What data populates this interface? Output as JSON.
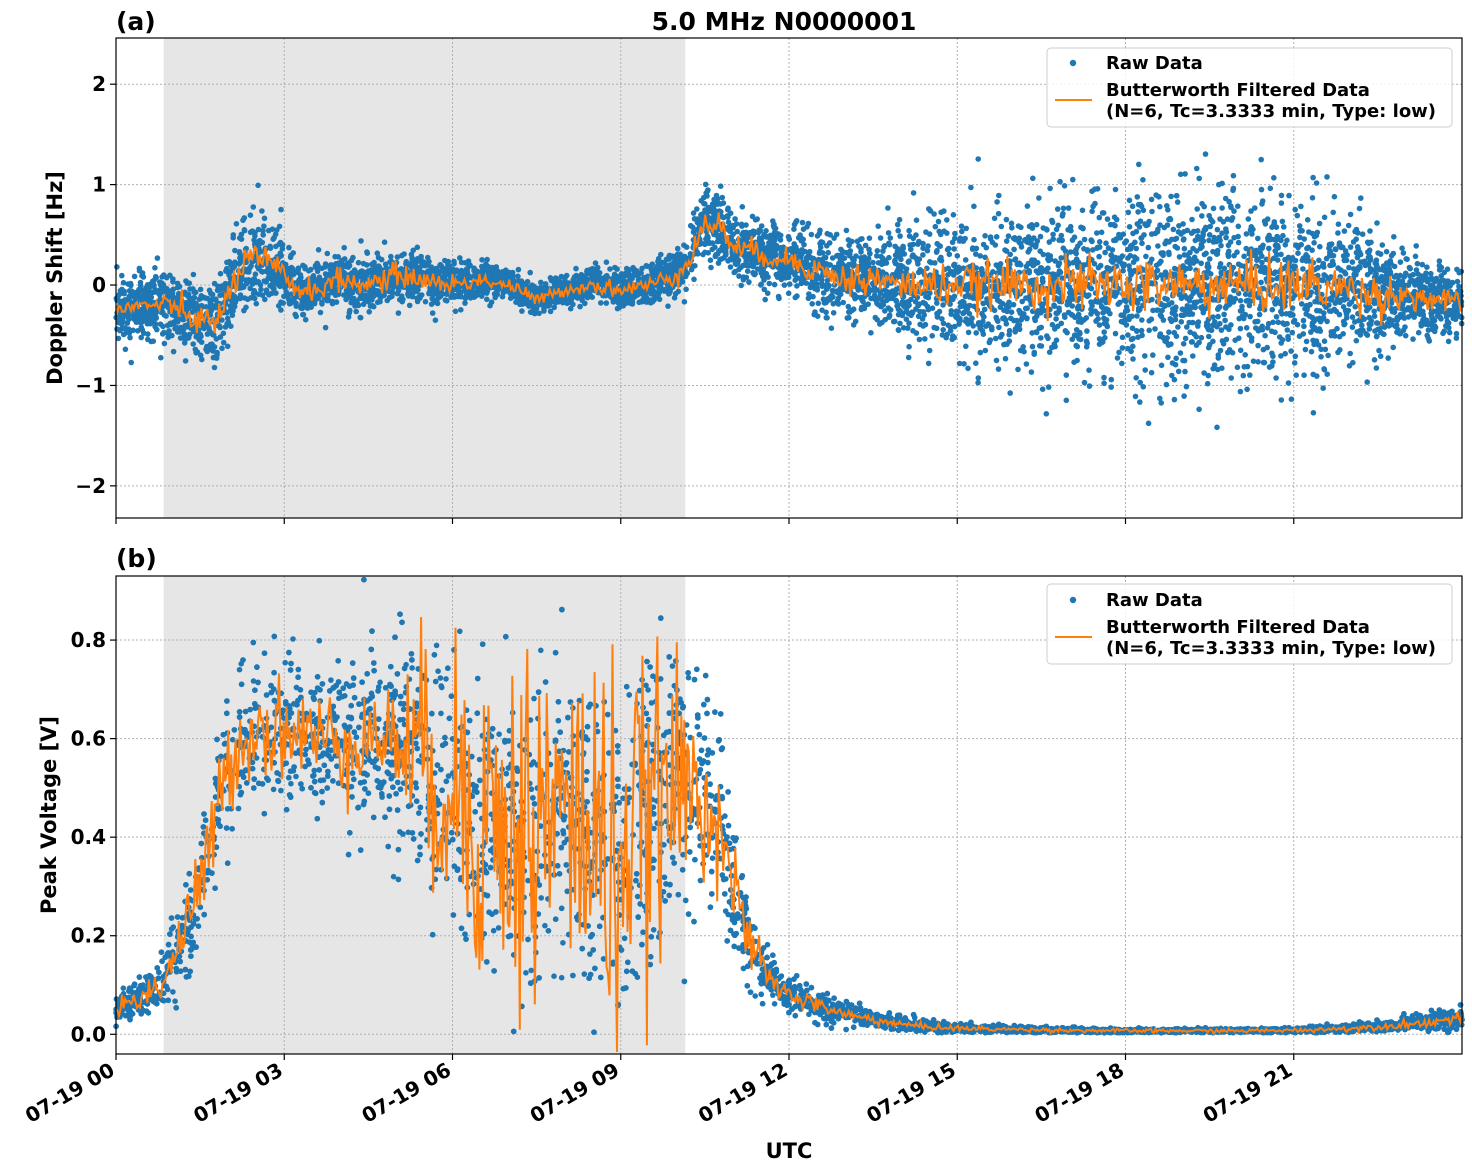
{
  "figure": {
    "title": "5.0 MHz N0000001",
    "xlabel": "UTC",
    "x_tick_labels": [
      "07-19 00",
      "07-19 03",
      "07-19 06",
      "07-19 09",
      "07-19 12",
      "07-19 15",
      "07-19 18",
      "07-19 21"
    ],
    "colors": {
      "raw": "#1f77b4",
      "filtered": "#ff7f0e",
      "shade": "#e6e6e6",
      "grid": "#b0b0b0"
    }
  },
  "legend": {
    "raw_label": "Raw Data",
    "filtered_label_line1": "Butterworth Filtered Data",
    "filtered_label_line2": "(N=6, Tc=3.3333 min, Type: low)",
    "placement": "top-right"
  },
  "chart_data": [
    {
      "type": "scatter",
      "panel_label": "(a)",
      "ylabel": "Doppler Shift [Hz]",
      "xlim_hours": [
        0,
        24
      ],
      "ylim": [
        -2.32,
        2.46
      ],
      "y_ticks": [
        2,
        1,
        0,
        -1,
        -2
      ],
      "y_tick_labels": [
        "2",
        "1",
        "0",
        "−1",
        "−2"
      ],
      "grid": true,
      "shaded_region_hours": [
        0.85,
        10.15
      ],
      "series": [
        {
          "name": "Raw Data",
          "style": "points",
          "x_hours": [
            0,
            0.5,
            1,
            1.25,
            1.5,
            1.75,
            2,
            2.25,
            2.5,
            2.75,
            3,
            3.25,
            3.5,
            4,
            4.5,
            5,
            5.5,
            6,
            6.5,
            7,
            7.5,
            8,
            8.5,
            9,
            9.5,
            10,
            10.25,
            10.5,
            10.75,
            11,
            11.5,
            12,
            12.5,
            13,
            13.5,
            14,
            14.5,
            15,
            15.5,
            16,
            16.5,
            17,
            17.5,
            18,
            18.5,
            19,
            19.5,
            20,
            20.5,
            21,
            21.5,
            22,
            22.5,
            23,
            23.5,
            24
          ],
          "center": [
            -0.25,
            -0.2,
            -0.2,
            -0.3,
            -0.35,
            -0.4,
            -0.1,
            0.2,
            0.25,
            0.2,
            0.1,
            -0.05,
            -0.05,
            0.05,
            0.0,
            0.1,
            0.05,
            0.0,
            0.05,
            0.0,
            -0.15,
            -0.05,
            0.0,
            -0.05,
            0.0,
            0.1,
            0.3,
            0.6,
            0.6,
            0.4,
            0.3,
            0.25,
            0.15,
            0.05,
            0.05,
            0.0,
            0.0,
            0.0,
            0.0,
            0.0,
            0.0,
            0.0,
            0.0,
            0.0,
            0.0,
            0.0,
            0.0,
            0.0,
            0.0,
            0.0,
            0.0,
            -0.05,
            -0.1,
            -0.1,
            -0.15,
            -0.2
          ],
          "spread": [
            0.35,
            0.35,
            0.35,
            0.4,
            0.45,
            0.5,
            0.45,
            0.5,
            0.55,
            0.5,
            0.4,
            0.3,
            0.3,
            0.3,
            0.3,
            0.3,
            0.25,
            0.25,
            0.2,
            0.2,
            0.15,
            0.15,
            0.2,
            0.2,
            0.2,
            0.25,
            0.3,
            0.4,
            0.4,
            0.35,
            0.35,
            0.35,
            0.4,
            0.45,
            0.5,
            0.55,
            0.6,
            0.7,
            0.75,
            0.8,
            0.85,
            0.9,
            0.95,
            1.0,
            1.05,
            1.05,
            1.05,
            1.0,
            1.0,
            0.95,
            0.9,
            0.8,
            0.6,
            0.45,
            0.4,
            0.35
          ]
        },
        {
          "name": "Butterworth Filtered Data\n(N=6, Tc=3.3333 min, Type: low)",
          "style": "line",
          "x_hours": [
            0,
            0.5,
            1,
            1.25,
            1.5,
            1.75,
            2,
            2.25,
            2.5,
            2.75,
            3,
            3.25,
            3.5,
            4,
            4.5,
            5,
            5.5,
            6,
            6.5,
            7,
            7.5,
            8,
            8.5,
            9,
            9.5,
            10,
            10.25,
            10.5,
            10.75,
            11,
            11.5,
            12,
            12.5,
            13,
            13.5,
            14,
            14.5,
            15,
            15.5,
            16,
            16.5,
            17,
            17.5,
            18,
            18.5,
            19,
            19.5,
            20,
            20.5,
            21,
            21.5,
            22,
            22.5,
            23,
            23.5,
            24
          ],
          "values": [
            -0.25,
            -0.2,
            -0.2,
            -0.3,
            -0.35,
            -0.4,
            -0.1,
            0.2,
            0.25,
            0.2,
            0.1,
            -0.05,
            -0.05,
            0.05,
            0.0,
            0.1,
            0.05,
            0.0,
            0.05,
            0.0,
            -0.15,
            -0.05,
            0.0,
            -0.05,
            0.0,
            0.1,
            0.3,
            0.6,
            0.6,
            0.4,
            0.3,
            0.25,
            0.15,
            0.05,
            0.05,
            0.0,
            0.0,
            0.0,
            0.0,
            0.0,
            0.0,
            0.0,
            0.0,
            0.0,
            0.0,
            0.0,
            0.0,
            0.0,
            0.0,
            0.0,
            0.0,
            -0.05,
            -0.1,
            -0.1,
            -0.15,
            -0.2
          ],
          "ripple": [
            0.04,
            0.04,
            0.05,
            0.07,
            0.08,
            0.08,
            0.07,
            0.08,
            0.09,
            0.08,
            0.07,
            0.06,
            0.06,
            0.06,
            0.06,
            0.06,
            0.05,
            0.05,
            0.04,
            0.04,
            0.03,
            0.03,
            0.04,
            0.04,
            0.04,
            0.05,
            0.06,
            0.07,
            0.07,
            0.06,
            0.06,
            0.06,
            0.07,
            0.08,
            0.09,
            0.09,
            0.1,
            0.1,
            0.11,
            0.12,
            0.12,
            0.13,
            0.13,
            0.13,
            0.14,
            0.14,
            0.14,
            0.14,
            0.14,
            0.14,
            0.13,
            0.12,
            0.1,
            0.08,
            0.07,
            0.06
          ]
        }
      ]
    },
    {
      "type": "scatter",
      "panel_label": "(b)",
      "ylabel": "Peak Voltage [V]",
      "xlim_hours": [
        0,
        24
      ],
      "ylim": [
        -0.04,
        0.93
      ],
      "y_ticks": [
        0.0,
        0.2,
        0.4,
        0.6,
        0.8
      ],
      "y_tick_labels": [
        "0.0",
        "0.2",
        "0.4",
        "0.6",
        "0.8"
      ],
      "grid": true,
      "shaded_region_hours": [
        0.85,
        10.15
      ],
      "series": [
        {
          "name": "Raw Data",
          "style": "points",
          "x_hours": [
            0,
            0.5,
            0.8,
            1,
            1.25,
            1.5,
            1.75,
            2,
            2.25,
            2.5,
            2.75,
            3,
            3.5,
            4,
            4.5,
            5,
            5.5,
            6,
            6.5,
            7,
            7.5,
            8,
            8.5,
            9,
            9.5,
            10,
            10.5,
            10.75,
            11,
            11.25,
            11.5,
            11.75,
            12,
            12.5,
            13,
            13.5,
            14,
            14.5,
            15,
            16,
            17,
            18,
            19,
            20,
            21,
            22,
            22.5,
            23,
            23.5,
            24
          ],
          "center": [
            0.05,
            0.08,
            0.1,
            0.15,
            0.22,
            0.3,
            0.42,
            0.55,
            0.6,
            0.62,
            0.62,
            0.62,
            0.6,
            0.6,
            0.6,
            0.6,
            0.55,
            0.5,
            0.45,
            0.4,
            0.42,
            0.45,
            0.4,
            0.35,
            0.45,
            0.5,
            0.48,
            0.45,
            0.3,
            0.2,
            0.14,
            0.1,
            0.08,
            0.06,
            0.04,
            0.03,
            0.02,
            0.015,
            0.012,
            0.01,
            0.008,
            0.007,
            0.007,
            0.007,
            0.008,
            0.012,
            0.015,
            0.02,
            0.025,
            0.035
          ],
          "spread": [
            0.03,
            0.04,
            0.05,
            0.08,
            0.1,
            0.14,
            0.16,
            0.18,
            0.18,
            0.18,
            0.18,
            0.18,
            0.18,
            0.2,
            0.2,
            0.22,
            0.25,
            0.3,
            0.32,
            0.33,
            0.33,
            0.33,
            0.33,
            0.33,
            0.33,
            0.3,
            0.25,
            0.22,
            0.15,
            0.1,
            0.07,
            0.05,
            0.04,
            0.035,
            0.025,
            0.02,
            0.015,
            0.012,
            0.01,
            0.008,
            0.006,
            0.005,
            0.005,
            0.005,
            0.006,
            0.01,
            0.012,
            0.015,
            0.02,
            0.03
          ]
        },
        {
          "name": "Butterworth Filtered Data\n(N=6, Tc=3.3333 min, Type: low)",
          "style": "line",
          "x_hours": [
            0,
            0.5,
            0.8,
            1,
            1.25,
            1.5,
            1.75,
            2,
            2.25,
            2.5,
            2.75,
            3,
            3.5,
            4,
            4.5,
            5,
            5.5,
            6,
            6.5,
            7,
            7.5,
            8,
            8.5,
            9,
            9.5,
            10,
            10.5,
            10.75,
            11,
            11.25,
            11.5,
            11.75,
            12,
            12.5,
            13,
            13.5,
            14,
            14.5,
            15,
            16,
            17,
            18,
            19,
            20,
            21,
            22,
            22.5,
            23,
            23.5,
            24
          ],
          "values": [
            0.05,
            0.08,
            0.1,
            0.15,
            0.22,
            0.3,
            0.42,
            0.55,
            0.6,
            0.62,
            0.62,
            0.62,
            0.6,
            0.6,
            0.6,
            0.6,
            0.55,
            0.5,
            0.45,
            0.4,
            0.42,
            0.45,
            0.4,
            0.35,
            0.45,
            0.5,
            0.48,
            0.45,
            0.3,
            0.2,
            0.14,
            0.1,
            0.08,
            0.06,
            0.04,
            0.03,
            0.02,
            0.015,
            0.012,
            0.01,
            0.008,
            0.007,
            0.007,
            0.007,
            0.008,
            0.012,
            0.015,
            0.02,
            0.025,
            0.035
          ],
          "ripple": [
            0.01,
            0.015,
            0.02,
            0.03,
            0.035,
            0.04,
            0.045,
            0.05,
            0.05,
            0.05,
            0.05,
            0.05,
            0.05,
            0.05,
            0.05,
            0.06,
            0.12,
            0.15,
            0.18,
            0.2,
            0.2,
            0.18,
            0.2,
            0.2,
            0.15,
            0.12,
            0.08,
            0.06,
            0.04,
            0.03,
            0.02,
            0.015,
            0.01,
            0.008,
            0.006,
            0.005,
            0.004,
            0.003,
            0.003,
            0.002,
            0.002,
            0.002,
            0.002,
            0.002,
            0.002,
            0.003,
            0.003,
            0.004,
            0.005,
            0.006
          ]
        }
      ]
    }
  ]
}
